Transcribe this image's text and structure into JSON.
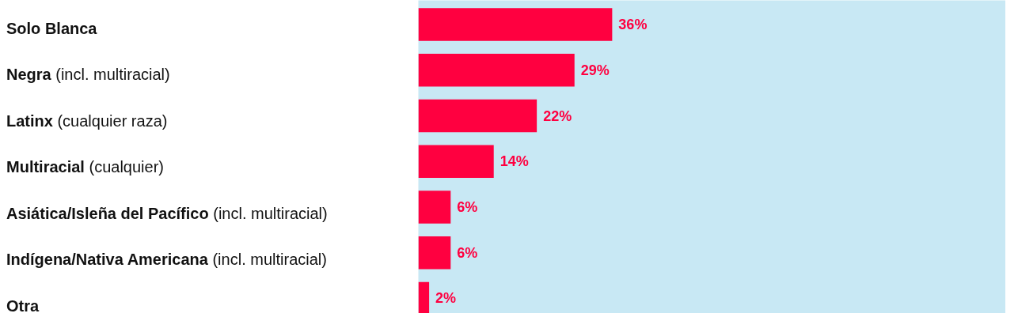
{
  "chart_data": {
    "type": "bar",
    "orientation": "horizontal",
    "categories": [
      "Solo Blanca",
      "Negra (incl. multiracial)",
      "Latinx (cualquier raza)",
      "Multiracial (cualquier)",
      "Asiática/Isleña del Pacífico (incl. multiracial)",
      "Indígena/Nativa Americana (incl. multiracial)",
      "Otra"
    ],
    "values": [
      36,
      29,
      22,
      14,
      6,
      6,
      2
    ],
    "value_labels": [
      "36%",
      "29%",
      "22%",
      "14%",
      "6%",
      "6%",
      "2%"
    ],
    "color": "#ff0040",
    "tick_labels": "y",
    "grid": false
  }
}
